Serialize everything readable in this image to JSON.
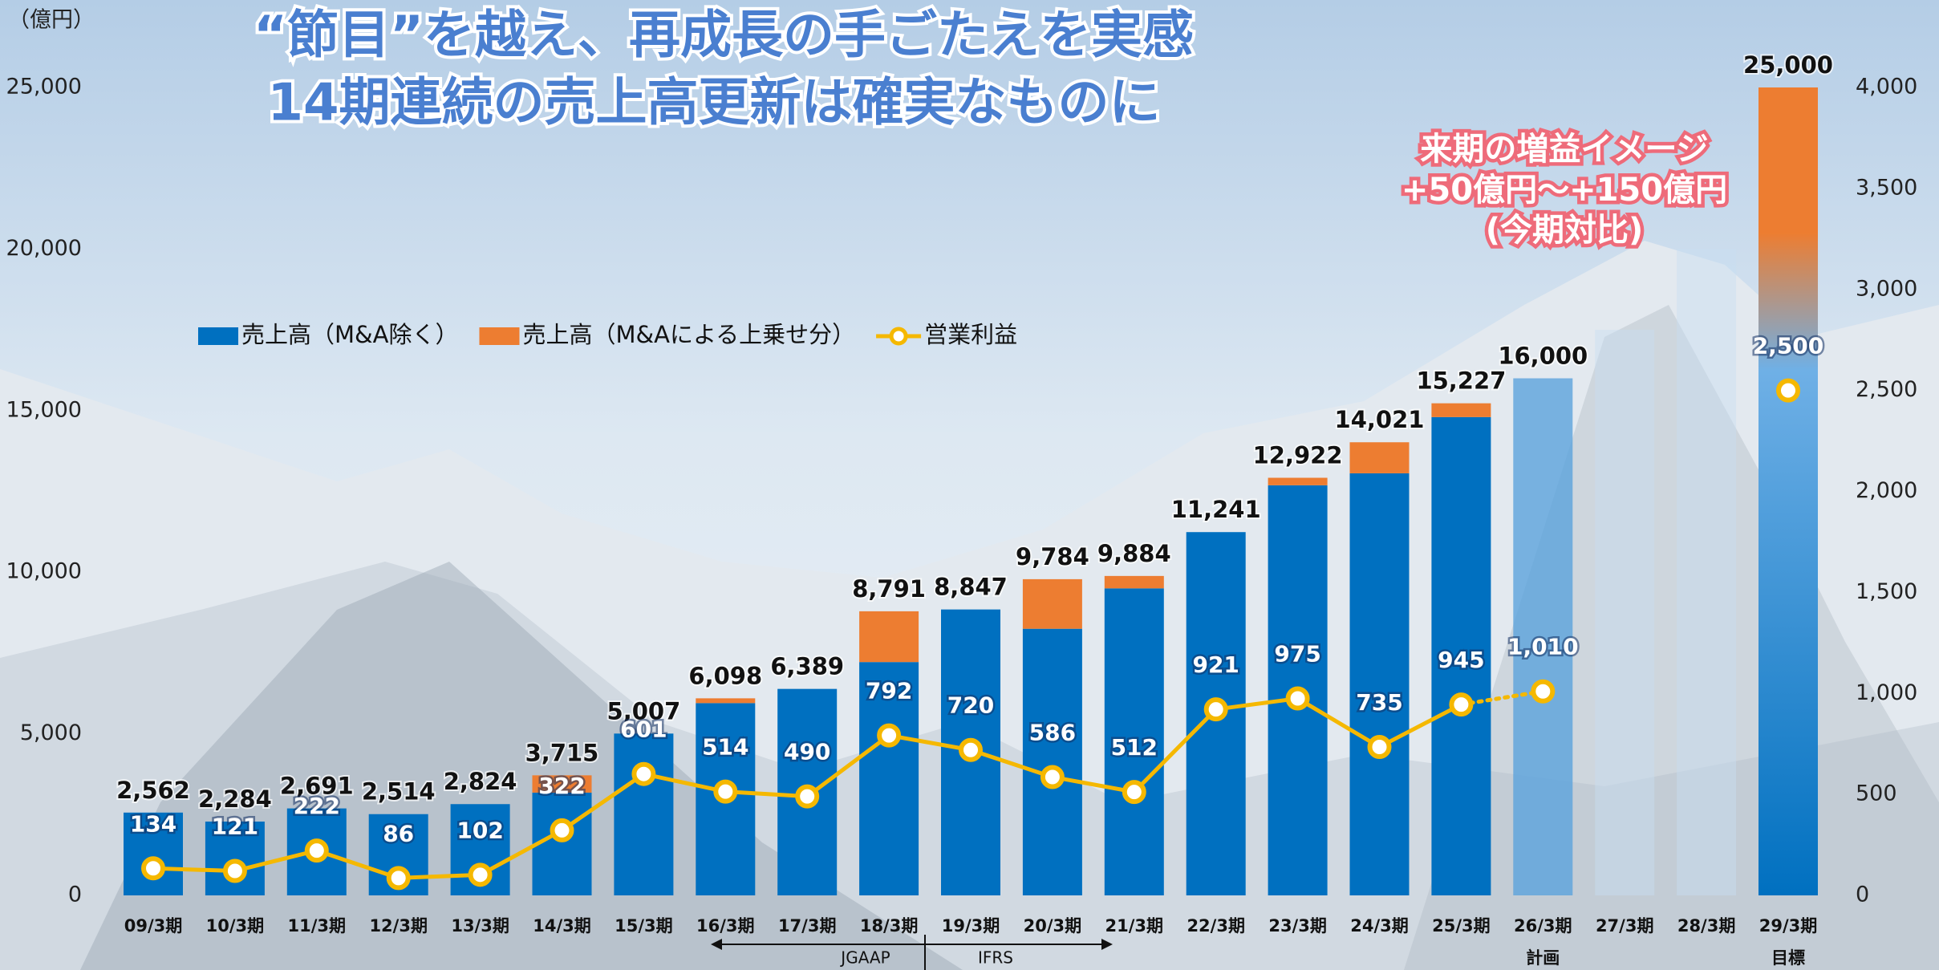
{
  "chart_data": {
    "type": "bar-line",
    "title": [
      "“節目”を越え、再成長の手ごたえを実感",
      "14期連続の売上高更新は確実なものに"
    ],
    "y_unit": "（億円）",
    "categories": [
      "09/3期",
      "10/3期",
      "11/3期",
      "12/3期",
      "13/3期",
      "14/3期",
      "15/3期",
      "16/3期",
      "17/3期",
      "18/3期",
      "19/3期",
      "20/3期",
      "21/3期",
      "22/3期",
      "23/3期",
      "24/3期",
      "25/3期",
      "26/3期",
      "27/3期",
      "28/3期",
      "29/3期"
    ],
    "category_notes": [
      null,
      null,
      null,
      null,
      null,
      null,
      null,
      null,
      null,
      null,
      null,
      null,
      null,
      null,
      null,
      null,
      null,
      "計画",
      null,
      null,
      "目標"
    ],
    "series": [
      {
        "name": "売上高（M&A除く）",
        "color": "#0070c0",
        "point_colors": [
          "#0070c0",
          "#0070c0",
          "#0070c0",
          "#0070c0",
          "#0070c0",
          "#0070c0",
          "#0070c0",
          "#0070c0",
          "#0070c0",
          "#0070c0",
          "#0070c0",
          "#0070c0",
          "#0070c0",
          "#0070c0",
          "#0070c0",
          "#0070c0",
          "#0070c0",
          "rgba(91,163,220,0.8)",
          "rgba(200,222,242,0.45)",
          "rgba(200,222,242,0.45)",
          "url(#target)"
        ],
        "values": [
          2562,
          2284,
          2691,
          2514,
          2824,
          3180,
          5007,
          5950,
          6389,
          7220,
          8847,
          8250,
          9500,
          11241,
          12690,
          13060,
          14800,
          16000,
          17500,
          20000,
          25000
        ]
      },
      {
        "name": "売上高（M&Aによる上乗せ分）",
        "color": "#ed7d31",
        "values": [
          null,
          null,
          null,
          null,
          null,
          535,
          null,
          148,
          null,
          1571,
          null,
          1534,
          384,
          null,
          232,
          961,
          427,
          null,
          null,
          null,
          null
        ]
      },
      {
        "name": "営業利益",
        "color": "#f5b800",
        "axis": "y2",
        "values": [
          134,
          121,
          222,
          86,
          102,
          322,
          601,
          514,
          490,
          792,
          720,
          586,
          512,
          921,
          975,
          735,
          945,
          1010,
          null,
          null,
          2500
        ],
        "dotted_segments": [
          [
            16,
            17
          ]
        ]
      }
    ],
    "totals": [
      2562,
      2284,
      2691,
      2514,
      2824,
      3715,
      5007,
      6098,
      6389,
      8791,
      8847,
      9784,
      9884,
      11241,
      12922,
      14021,
      15227,
      16000,
      null,
      null,
      25000
    ],
    "total_labels": [
      "2,562",
      "2,284",
      "2,691",
      "2,514",
      "2,824",
      "3,715",
      "5,007",
      "6,098",
      "6,389",
      "8,791",
      "8,847",
      "9,784",
      "9,884",
      "11,241",
      "12,922",
      "14,021",
      "15,227",
      "16,000",
      null,
      null,
      "25,000"
    ],
    "profit_labels": [
      "134",
      "121",
      "222",
      "86",
      "102",
      "322",
      "601",
      "514",
      "490",
      "792",
      "720",
      "586",
      "512",
      "921",
      "975",
      "735",
      "945",
      "1,010",
      null,
      null,
      "2,500"
    ],
    "ylim": [
      0,
      25000
    ],
    "yticks": [
      0,
      {
        "value": 5000,
        "label": "5,000"
      },
      {
        "value": 10000,
        "label": "10,000"
      },
      {
        "value": 15000,
        "label": "15,000"
      },
      {
        "value": 20000,
        "label": "20,000"
      },
      {
        "value": 25000,
        "label": "25,000"
      }
    ],
    "y2lim": [
      0,
      4000
    ],
    "y2ticks": [
      0,
      500,
      {
        "value": 1000,
        "label": "1,000"
      },
      {
        "value": 1500,
        "label": "1,500"
      },
      {
        "value": 2000,
        "label": "2,000"
      },
      {
        "value": 2500,
        "label": "2,500"
      },
      {
        "value": 3000,
        "label": "3,000"
      },
      {
        "value": 3500,
        "label": "3,500"
      },
      {
        "value": 4000,
        "label": "4,000"
      }
    ],
    "annotation": [
      "来期の増益イメージ",
      "+50億円～+150億円",
      "(今期対比)"
    ],
    "accounting": [
      "JGAAP",
      "IFRS"
    ],
    "grid": false
  }
}
